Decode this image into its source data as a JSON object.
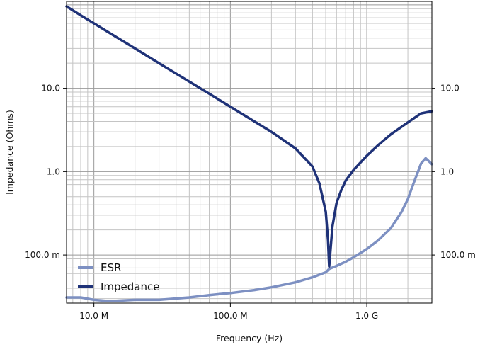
{
  "chart_data": {
    "type": "line",
    "xlabel": "Frequency (Hz)",
    "ylabel": "Impedance (Ohms)",
    "x_scale": "log",
    "y_scale": "log",
    "xlim": [
      6300000,
      3000000000
    ],
    "ylim": [
      0.0265,
      110
    ],
    "grid": true,
    "legend_position": "bottom-left",
    "x_ticks": [
      {
        "value": 10000000,
        "label": "10.0 M"
      },
      {
        "value": 100000000,
        "label": "100.0 M"
      },
      {
        "value": 1000000000,
        "label": "1.0 G"
      }
    ],
    "y_ticks": [
      {
        "value": 0.1,
        "label": "100.0 m"
      },
      {
        "value": 1,
        "label": "1.0"
      },
      {
        "value": 10,
        "label": "10.0"
      }
    ],
    "series": [
      {
        "name": "ESR",
        "color": "#7d90c2",
        "x": [
          6300000,
          8000000,
          10000000,
          13000000,
          20000000,
          30000000,
          50000000,
          70000000,
          100000000,
          150000000,
          200000000,
          300000000,
          400000000,
          500000000,
          530000000,
          600000000,
          700000000,
          800000000,
          1000000000,
          1200000000,
          1500000000,
          1800000000,
          2000000000,
          2200000000,
          2500000000,
          2700000000,
          3000000000
        ],
        "y": [
          0.031,
          0.031,
          0.029,
          0.028,
          0.029,
          0.029,
          0.031,
          0.033,
          0.035,
          0.038,
          0.041,
          0.047,
          0.054,
          0.062,
          0.068,
          0.074,
          0.083,
          0.094,
          0.118,
          0.148,
          0.21,
          0.33,
          0.47,
          0.72,
          1.25,
          1.45,
          1.23
        ]
      },
      {
        "name": "Impedance",
        "color": "#1f3278",
        "x": [
          6300000,
          8000000,
          10000000,
          15000000,
          20000000,
          30000000,
          50000000,
          70000000,
          100000000,
          150000000,
          200000000,
          300000000,
          400000000,
          450000000,
          500000000,
          520000000,
          530000000,
          560000000,
          600000000,
          650000000,
          700000000,
          800000000,
          1000000000,
          1200000000,
          1500000000,
          2000000000,
          2500000000,
          3000000000
        ],
        "y": [
          96,
          75,
          60,
          40,
          30,
          20,
          12,
          8.6,
          6.0,
          4.0,
          3.0,
          1.9,
          1.15,
          0.72,
          0.33,
          0.15,
          0.073,
          0.22,
          0.42,
          0.6,
          0.78,
          1.05,
          1.55,
          2.05,
          2.8,
          3.9,
          5.0,
          5.3
        ]
      }
    ]
  }
}
